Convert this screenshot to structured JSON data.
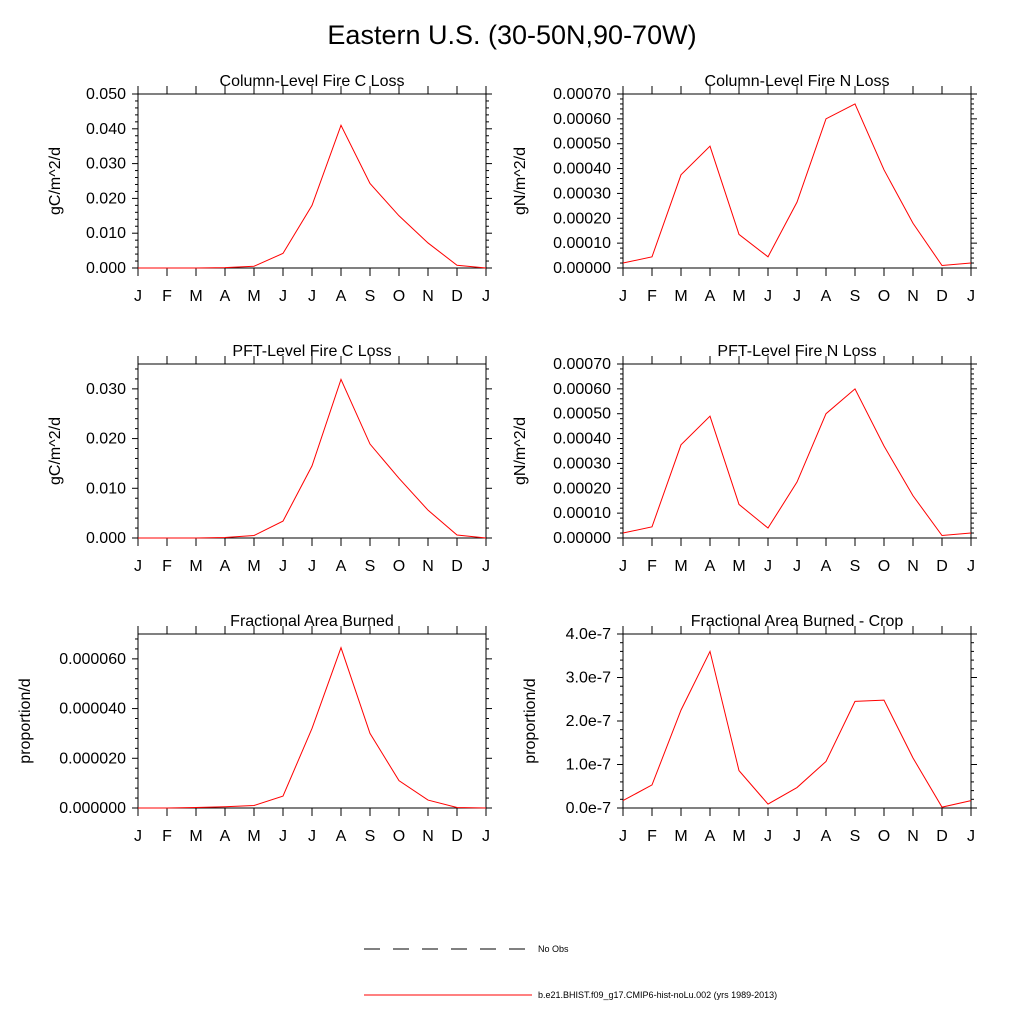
{
  "figure": {
    "title": "Eastern U.S. (30-50N,90-70W)"
  },
  "months": [
    "J",
    "F",
    "M",
    "A",
    "M",
    "J",
    "J",
    "A",
    "S",
    "O",
    "N",
    "D",
    "J"
  ],
  "legend": {
    "obs_label": "No Obs",
    "model_label": "b.e21.BHIST.f09_g17.CMIP6-hist-noLu.002 (yrs 1989-2013)",
    "model_color": "#ff0000",
    "obs_color": "#000000"
  },
  "chart_data": [
    {
      "type": "line",
      "title": "Column-Level Fire C Loss",
      "ylabel": "gC/m^2/d",
      "ylim": [
        0,
        0.05
      ],
      "yticks": [
        0,
        0.01,
        0.02,
        0.03,
        0.04,
        0.05
      ],
      "ytick_labels": [
        "0.000",
        "0.010",
        "0.020",
        "0.030",
        "0.040",
        "0.050"
      ],
      "x": [
        "J",
        "F",
        "M",
        "A",
        "M",
        "J",
        "J",
        "A",
        "S",
        "O",
        "N",
        "D",
        "J"
      ],
      "series": [
        {
          "values": [
            0.0,
            0.0,
            0.0,
            0.0001,
            0.0005,
            0.0042,
            0.018,
            0.041,
            0.0243,
            0.015,
            0.0072,
            0.0008,
            0.0
          ]
        }
      ]
    },
    {
      "type": "line",
      "title": "Column-Level Fire N Loss",
      "ylabel": "gN/m^2/d",
      "ylim": [
        0,
        0.0007
      ],
      "yticks": [
        0,
        0.0001,
        0.0002,
        0.0003,
        0.0004,
        0.0005,
        0.0006,
        0.0007
      ],
      "ytick_labels": [
        "0.00000",
        "0.00010",
        "0.00020",
        "0.00030",
        "0.00040",
        "0.00050",
        "0.00060",
        "0.00070"
      ],
      "x": [
        "J",
        "F",
        "M",
        "A",
        "M",
        "J",
        "J",
        "A",
        "S",
        "O",
        "N",
        "D",
        "J"
      ],
      "series": [
        {
          "values": [
            2e-05,
            4.5e-05,
            0.000375,
            0.00049,
            0.000135,
            4.5e-05,
            0.000265,
            0.0006,
            0.00066,
            0.000395,
            0.00018,
            1e-05,
            2e-05
          ]
        }
      ]
    },
    {
      "type": "line",
      "title": "PFT-Level Fire C Loss",
      "ylabel": "gC/m^2/d",
      "ylim": [
        0,
        0.035
      ],
      "yticks": [
        0,
        0.01,
        0.02,
        0.03
      ],
      "ytick_labels": [
        "0.000",
        "0.010",
        "0.020",
        "0.030"
      ],
      "x": [
        "J",
        "F",
        "M",
        "A",
        "M",
        "J",
        "J",
        "A",
        "S",
        "O",
        "N",
        "D",
        "J"
      ],
      "series": [
        {
          "values": [
            0.0,
            0.0,
            0.0,
            0.0001,
            0.0005,
            0.0034,
            0.0145,
            0.0319,
            0.0189,
            0.012,
            0.0056,
            0.0006,
            0.0
          ]
        }
      ]
    },
    {
      "type": "line",
      "title": "PFT-Level Fire N Loss",
      "ylabel": "gN/m^2/d",
      "ylim": [
        0,
        0.0007
      ],
      "yticks": [
        0,
        0.0001,
        0.0002,
        0.0003,
        0.0004,
        0.0005,
        0.0006,
        0.0007
      ],
      "ytick_labels": [
        "0.00000",
        "0.00010",
        "0.00020",
        "0.00030",
        "0.00040",
        "0.00050",
        "0.00060",
        "0.00070"
      ],
      "x": [
        "J",
        "F",
        "M",
        "A",
        "M",
        "J",
        "J",
        "A",
        "S",
        "O",
        "N",
        "D",
        "J"
      ],
      "series": [
        {
          "values": [
            2e-05,
            4.5e-05,
            0.000375,
            0.00049,
            0.000135,
            4e-05,
            0.000225,
            0.0005,
            0.0006,
            0.00037,
            0.00017,
            1e-05,
            2e-05
          ]
        }
      ]
    },
    {
      "type": "line",
      "title": "Fractional Area Burned",
      "ylabel": "proportion/d",
      "ylim": [
        0,
        7e-05
      ],
      "yticks": [
        0,
        2e-05,
        4e-05,
        6e-05
      ],
      "ytick_labels": [
        "0.000000",
        "0.000020",
        "0.000040",
        "0.000060"
      ],
      "x": [
        "J",
        "F",
        "M",
        "A",
        "M",
        "J",
        "J",
        "A",
        "S",
        "O",
        "N",
        "D",
        "J"
      ],
      "series": [
        {
          "values": [
            0.0,
            0.0,
            2e-07,
            5e-07,
            1e-06,
            4.8e-06,
            3.2e-05,
            6.45e-05,
            3e-05,
            1.1e-05,
            3.2e-06,
            2e-07,
            0.0
          ]
        }
      ]
    },
    {
      "type": "line",
      "title": "Fractional Area Burned - Crop",
      "ylabel": "proportion/d",
      "ylim": [
        0,
        4e-07
      ],
      "yticks": [
        0,
        1e-07,
        2e-07,
        3e-07,
        4e-07
      ],
      "ytick_labels": [
        "0.0e-7",
        "1.0e-7",
        "2.0e-7",
        "3.0e-7",
        "4.0e-7"
      ],
      "x": [
        "J",
        "F",
        "M",
        "A",
        "M",
        "J",
        "J",
        "A",
        "S",
        "O",
        "N",
        "D",
        "J"
      ],
      "series": [
        {
          "values": [
            1.7e-08,
            5.3e-08,
            2.25e-07,
            3.6e-07,
            8.6e-08,
            9e-09,
            4.7e-08,
            1.07e-07,
            2.45e-07,
            2.48e-07,
            1.15e-07,
            2e-09,
            1.7e-08
          ]
        }
      ]
    }
  ]
}
